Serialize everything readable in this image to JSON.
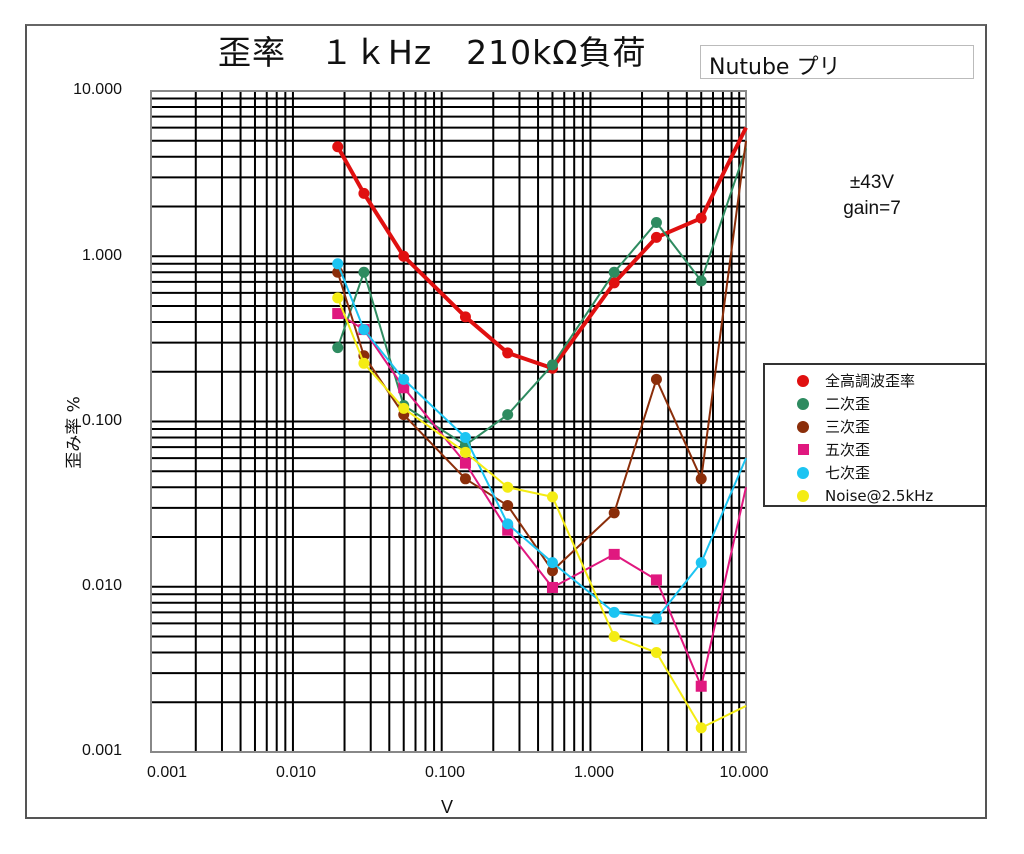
{
  "chart_title": "歪率　１ｋHz　210kΩ負荷",
  "subtitle_box": "Nutube プリ",
  "annotation": {
    "line1": "±43V",
    "line2": "gain=7"
  },
  "axes": {
    "xlabel": "V",
    "ylabel": "歪み率 %",
    "xticks": [
      "0.001",
      "0.010",
      "0.100",
      "1.000",
      "10.000"
    ],
    "yticks": [
      "10.000",
      "1.000",
      "0.100",
      "0.010",
      "0.001"
    ]
  },
  "legend": {
    "items": [
      {
        "label": "全高調波歪率",
        "color": "#e01010",
        "marker": "circle"
      },
      {
        "label": "二次歪",
        "color": "#2e8b60",
        "marker": "circle"
      },
      {
        "label": "三次歪",
        "color": "#8b2e0a",
        "marker": "circle"
      },
      {
        "label": "五次歪",
        "color": "#e0187f",
        "marker": "square"
      },
      {
        "label": "七次歪",
        "color": "#1cc4f2",
        "marker": "circle"
      },
      {
        "label": "Noise@2.5kHz",
        "color": "#f4ec14",
        "marker": "circle"
      }
    ]
  },
  "chart_data": {
    "type": "line",
    "title": "歪率　１ｋHz　210kΩ負荷",
    "subtitle": "Nutube プリ",
    "annotations": [
      "±43V",
      "gain=7"
    ],
    "xlabel": "V",
    "ylabel": "歪み率 %",
    "xscale": "log",
    "yscale": "log",
    "xlim": [
      0.001,
      10
    ],
    "ylim": [
      0.001,
      10
    ],
    "grid": true,
    "legend_position": "right",
    "x": [
      0.018,
      0.027,
      0.05,
      0.13,
      0.25,
      0.5,
      1.3,
      2.5,
      5.0,
      10.0
    ],
    "series": [
      {
        "name": "全高調波歪率",
        "color": "#e01010",
        "marker": "circle",
        "values": [
          4.6,
          2.4,
          1.0,
          0.43,
          0.26,
          0.21,
          0.69,
          1.3,
          1.7,
          6.0
        ]
      },
      {
        "name": "二次歪",
        "color": "#2e8b60",
        "marker": "circle",
        "values": [
          0.28,
          0.8,
          0.125,
          0.072,
          0.11,
          0.22,
          0.8,
          1.6,
          0.71,
          4.5
        ]
      },
      {
        "name": "三次歪",
        "color": "#8b2e0a",
        "marker": "circle",
        "values": [
          0.8,
          0.25,
          0.11,
          0.045,
          0.031,
          0.0125,
          0.028,
          0.18,
          0.045,
          5.0
        ]
      },
      {
        "name": "五次歪",
        "color": "#e0187f",
        "marker": "square",
        "values": [
          0.45,
          0.36,
          0.16,
          0.056,
          0.022,
          0.0099,
          0.0157,
          0.011,
          0.0025,
          0.04
        ]
      },
      {
        "name": "七次歪",
        "color": "#1cc4f2",
        "marker": "circle",
        "values": [
          0.9,
          0.36,
          0.18,
          0.08,
          0.024,
          0.014,
          0.007,
          0.0064,
          0.014,
          0.06
        ]
      },
      {
        "name": "Noise@2.5kHz",
        "color": "#f4ec14",
        "marker": "circle",
        "values": [
          0.56,
          0.225,
          0.12,
          0.065,
          0.04,
          0.035,
          0.005,
          0.004,
          0.0014,
          0.0019
        ]
      }
    ]
  }
}
